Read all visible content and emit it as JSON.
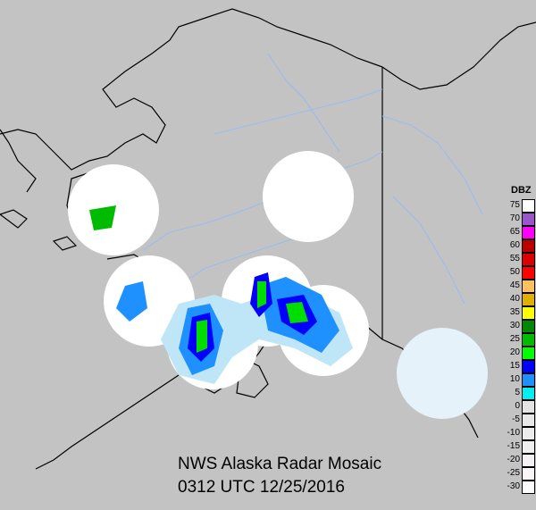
{
  "title": "NWS Alaska Radar Mosaic",
  "timestamp": "0312 UTC 12/25/2016",
  "legend": {
    "title": "DBZ",
    "entries": [
      {
        "label": "75",
        "color": "#ffffff"
      },
      {
        "label": "70",
        "color": "#9955cc"
      },
      {
        "label": "65",
        "color": "#ff00ff"
      },
      {
        "label": "60",
        "color": "#bb0000"
      },
      {
        "label": "55",
        "color": "#dd0000"
      },
      {
        "label": "50",
        "color": "#ff0000"
      },
      {
        "label": "45",
        "color": "#ffc060"
      },
      {
        "label": "40",
        "color": "#e0b000"
      },
      {
        "label": "35",
        "color": "#ffff00"
      },
      {
        "label": "30",
        "color": "#008800"
      },
      {
        "label": "25",
        "color": "#00bb00"
      },
      {
        "label": "20",
        "color": "#00ff00"
      },
      {
        "label": "15",
        "color": "#0000ff"
      },
      {
        "label": "10",
        "color": "#1e90ff"
      },
      {
        "label": "5",
        "color": "#00eeee"
      },
      {
        "label": "0",
        "color": "#e4e4e4"
      },
      {
        "label": "-5",
        "color": "#e8e8e8"
      },
      {
        "label": "-10",
        "color": "#ececec"
      },
      {
        "label": "-15",
        "color": "#f0f0f0"
      },
      {
        "label": "-20",
        "color": "#f4f0f4"
      },
      {
        "label": "-25",
        "color": "#f8f4f8"
      },
      {
        "label": "-30",
        "color": "#fcfcfc"
      }
    ]
  },
  "colors": {
    "background": "#c3c3c3",
    "coast": "#000000",
    "rivers": "#99bbee",
    "radar_coverage": "#ffffff",
    "light_echo": "#bfe6f7"
  }
}
